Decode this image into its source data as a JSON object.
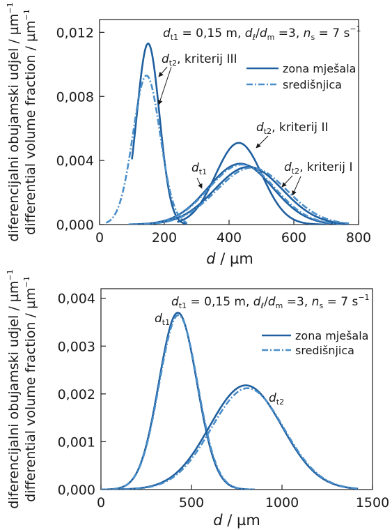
{
  "chart_data": [
    {
      "type": "line",
      "condition": {
        "d_sym": "d",
        "d_sub": "t1",
        "d_val": " = 0,15 m, ",
        "ratio_num": "d",
        "ratio_num_sub": "ℓ",
        "ratio_den": "d",
        "ratio_den_sub": "m",
        "ratio_val": " =3, ",
        "n_sym": "n",
        "n_sub": "s",
        "n_val": " = 7 s",
        "n_exp": "−1"
      },
      "ylabel_top": "diferencijalni obujamski udjel / µm",
      "ylabel_bottom": "differential volume fraction / µm",
      "ylabel_exp": "−1",
      "xlabel_sym": "d",
      "xlabel_unit": " / µm",
      "xlim": [
        0,
        800
      ],
      "ylim": [
        0,
        0.0128
      ],
      "xticks": [
        0,
        200,
        400,
        600,
        800
      ],
      "xtick_labels": [
        "0",
        "200",
        "400",
        "600",
        "800"
      ],
      "yticks": [
        0.0,
        0.004,
        0.008,
        0.012
      ],
      "ytick_labels": [
        "0,000",
        "0,004",
        "0,008",
        "0,012"
      ],
      "legend": {
        "position": "top-right",
        "entries": [
          "zona mješala",
          "središnjica"
        ]
      },
      "colors": {
        "solid": "#1f5f9f",
        "dashdot": "#4a8ec9"
      },
      "annotations": {
        "crit3": {
          "sym": "d",
          "sub": "t2",
          "text": ", kriterij III"
        },
        "crit2": {
          "sym": "d",
          "sub": "t2",
          "text": ", kriterij II"
        },
        "crit1": {
          "sym": "d",
          "sub": "t2",
          "text": ", kriterij I"
        },
        "dt1": {
          "sym": "d",
          "sub": "t1"
        }
      },
      "series": [
        {
          "style": "solid",
          "mu": 150,
          "sigma": 35,
          "peak": 0.0113,
          "xmin": 100,
          "xmax": 270
        },
        {
          "style": "dashdot",
          "mu": 145,
          "sigma": 42,
          "peak": 0.0093,
          "xmin": 20,
          "xmax": 270
        },
        {
          "style": "solid",
          "mu": 430,
          "sigma": 72,
          "peak": 0.0051,
          "xmin": 240,
          "xmax": 700
        },
        {
          "style": "solid",
          "mu": 435,
          "sigma": 100,
          "peak": 0.0038,
          "xmin": 90,
          "xmax": 770
        },
        {
          "style": "dashdot",
          "mu": 440,
          "sigma": 102,
          "peak": 0.00375,
          "xmin": 90,
          "xmax": 770
        },
        {
          "style": "solid",
          "mu": 460,
          "sigma": 105,
          "peak": 0.0036,
          "xmin": 100,
          "xmax": 770
        },
        {
          "style": "dashdot",
          "mu": 470,
          "sigma": 108,
          "peak": 0.00355,
          "xmin": 100,
          "xmax": 770
        }
      ]
    },
    {
      "type": "line",
      "condition": {
        "d_sym": "d",
        "d_sub": "t1",
        "d_val": " = 0,15 m, ",
        "ratio_num": "d",
        "ratio_num_sub": "ℓ",
        "ratio_den": "d",
        "ratio_den_sub": "m",
        "ratio_val": " =3, ",
        "n_sym": "n",
        "n_sub": "s",
        "n_val": " = 7 s",
        "n_exp": "−1"
      },
      "ylabel_top": "diferencijalni obujamski udjel / µm",
      "ylabel_bottom": "differential volume fraction / µm",
      "ylabel_exp": "−1",
      "xlabel_sym": "d",
      "xlabel_unit": " / µm",
      "xlim": [
        0,
        1500
      ],
      "ylim": [
        0,
        0.0042
      ],
      "xticks": [
        0,
        500,
        1000,
        1500
      ],
      "xtick_labels": [
        "0",
        "500",
        "1000",
        "1500"
      ],
      "yticks": [
        0.0,
        0.001,
        0.002,
        0.003,
        0.004
      ],
      "ytick_labels": [
        "0,000",
        "0,001",
        "0,002",
        "0,003",
        "0,004"
      ],
      "legend": {
        "position": "center-right",
        "entries": [
          "zona mješala",
          "središnjica"
        ]
      },
      "colors": {
        "solid": "#1f5f9f",
        "dashdot": "#4a8ec9"
      },
      "annotations": {
        "dt1": {
          "sym": "d",
          "sub": "t1"
        },
        "dt2": {
          "sym": "d",
          "sub": "t2"
        }
      },
      "series": [
        {
          "style": "solid",
          "mu": 425,
          "sigma": 105,
          "peak": 0.0037,
          "xmin": 0,
          "xmax": 850
        },
        {
          "style": "dashdot",
          "mu": 428,
          "sigma": 106,
          "peak": 0.00365,
          "xmin": 0,
          "xmax": 850
        },
        {
          "style": "solid",
          "mu": 800,
          "sigma": 200,
          "peak": 0.00218,
          "xmin": 60,
          "xmax": 1420
        },
        {
          "style": "dashdot",
          "mu": 810,
          "sigma": 200,
          "peak": 0.00212,
          "xmin": 60,
          "xmax": 1420
        }
      ]
    }
  ]
}
